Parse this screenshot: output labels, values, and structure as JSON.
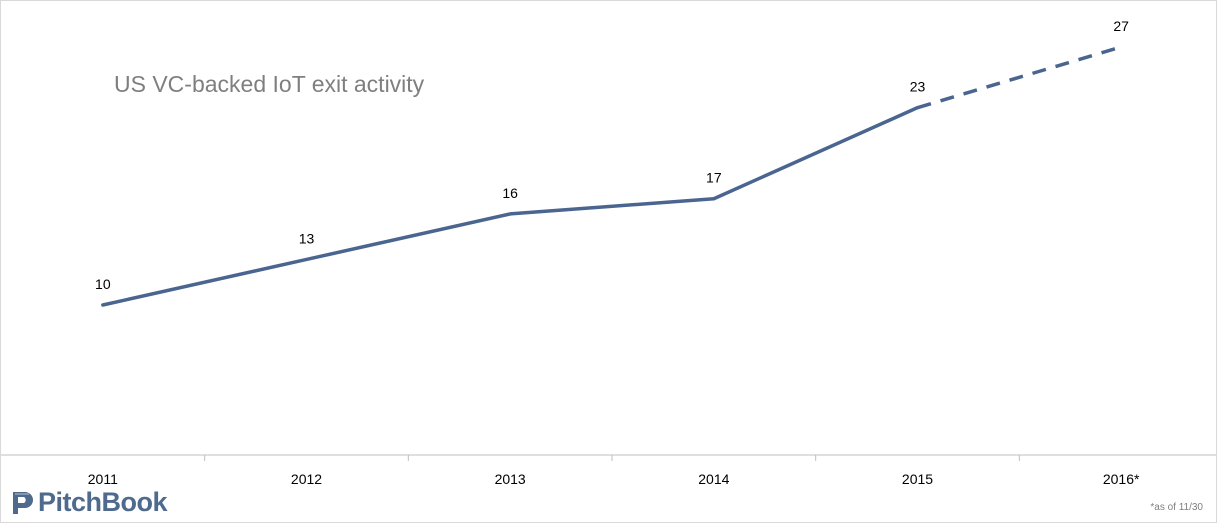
{
  "chart_data": {
    "type": "line",
    "title": "US VC-backed IoT exit activity",
    "categories": [
      "2011",
      "2012",
      "2013",
      "2014",
      "2015",
      "2016*"
    ],
    "series": [
      {
        "values": [
          10,
          13,
          16,
          17,
          23,
          27
        ]
      }
    ],
    "projected_from_index": 4,
    "data_labels": true,
    "xlabel": "",
    "ylabel": "",
    "ylim": [
      0,
      30
    ],
    "grid": false,
    "legend": "none",
    "line_color": "#4a6690",
    "footnote": "*as of 11/30"
  },
  "brand": {
    "name": "PitchBook",
    "color": "#4e6a8c"
  }
}
